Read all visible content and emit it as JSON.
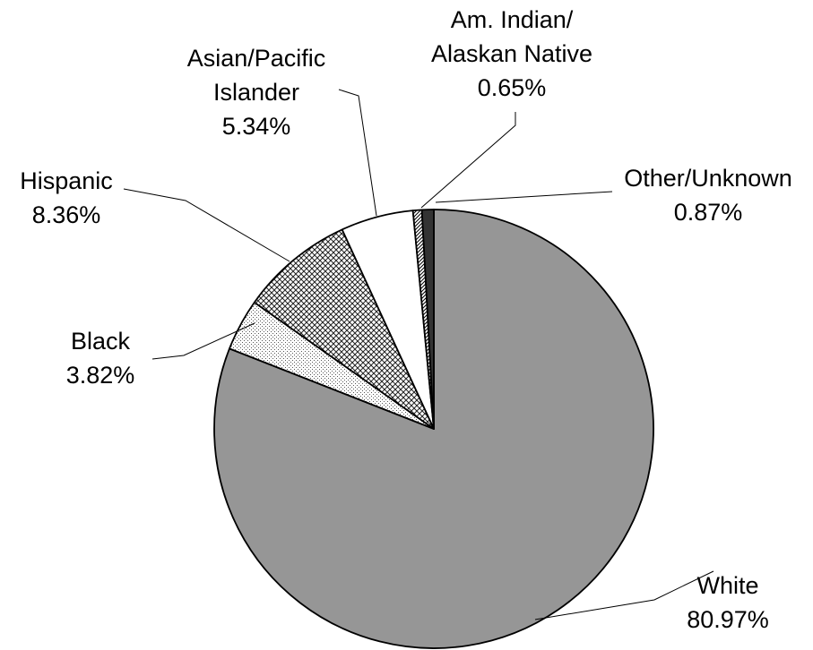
{
  "chart_data": {
    "type": "pie",
    "title": "",
    "start": "12 o'clock",
    "direction": "clockwise",
    "slices": [
      {
        "category": "White",
        "value": 80.97,
        "value_label": "80.97%",
        "name_lines": [
          "White"
        ],
        "color": "#969696",
        "pattern": "solid"
      },
      {
        "category": "Black",
        "value": 3.82,
        "value_label": "3.82%",
        "name_lines": [
          "Black"
        ],
        "color": "#ffffff",
        "pattern": "fine-dots"
      },
      {
        "category": "Hispanic",
        "value": 8.36,
        "value_label": "8.36%",
        "name_lines": [
          "Hispanic"
        ],
        "color": "#ffffff",
        "pattern": "crosshatch"
      },
      {
        "category": "Asian/Pacific Islander",
        "value": 5.34,
        "value_label": "5.34%",
        "name_lines": [
          "Asian/Pacific",
          "Islander"
        ],
        "color": "#ffffff",
        "pattern": "solid"
      },
      {
        "category": "Am. Indian/ Alaskan Native",
        "value": 0.65,
        "value_label": "0.65%",
        "name_lines": [
          "Am. Indian/",
          "Alaskan Native"
        ],
        "color": "#ffffff",
        "pattern": "diagonal-stripes"
      },
      {
        "category": "Other/Unknown",
        "value": 0.87,
        "value_label": "0.87%",
        "name_lines": [
          "Other/Unknown"
        ],
        "color": "#333333",
        "pattern": "solid"
      }
    ]
  }
}
